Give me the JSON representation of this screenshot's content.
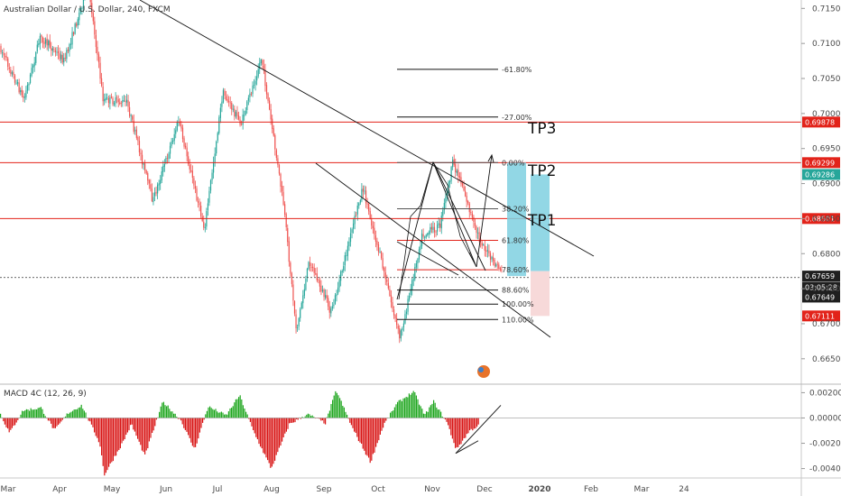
{
  "chart_data": [
    {
      "type": "candlestick",
      "title": "Australian Dollar / U.S. Dollar, 240, FXCM",
      "x_tick_labels": [
        "Mar",
        "Apr",
        "May",
        "Jun",
        "Jul",
        "Aug",
        "Sep",
        "Oct",
        "Nov",
        "Dec",
        "2020",
        "Feb",
        "Mar",
        "24"
      ],
      "y_tick_labels": [
        "0.71500",
        "0.71000",
        "0.70500",
        "0.70000",
        "0.69500",
        "0.69000",
        "0.68500",
        "0.68000",
        "0.67500",
        "0.67000",
        "0.66500"
      ],
      "ylim": [
        0.6615,
        0.7162
      ],
      "price_path": [
        {
          "date": "2019-02-27",
          "price": 0.7095
        },
        {
          "date": "2019-03-12",
          "price": 0.702
        },
        {
          "date": "2019-03-21",
          "price": 0.711
        },
        {
          "date": "2019-04-03",
          "price": 0.7075
        },
        {
          "date": "2019-04-16",
          "price": 0.7185
        },
        {
          "date": "2019-04-24",
          "price": 0.702
        },
        {
          "date": "2019-05-07",
          "price": 0.7015
        },
        {
          "date": "2019-05-21",
          "price": 0.6875
        },
        {
          "date": "2019-06-04",
          "price": 0.699
        },
        {
          "date": "2019-06-18",
          "price": 0.6835
        },
        {
          "date": "2019-06-28",
          "price": 0.703
        },
        {
          "date": "2019-07-08",
          "price": 0.6985
        },
        {
          "date": "2019-07-19",
          "price": 0.708
        },
        {
          "date": "2019-07-31",
          "price": 0.687
        },
        {
          "date": "2019-08-07",
          "price": 0.669
        },
        {
          "date": "2019-08-14",
          "price": 0.679
        },
        {
          "date": "2019-08-26",
          "price": 0.6715
        },
        {
          "date": "2019-09-12",
          "price": 0.6895
        },
        {
          "date": "2019-09-23",
          "price": 0.678
        },
        {
          "date": "2019-10-02",
          "price": 0.668
        },
        {
          "date": "2019-10-07",
          "price": 0.6735
        },
        {
          "date": "2019-10-14",
          "price": 0.6825
        },
        {
          "date": "2019-10-24",
          "price": 0.684
        },
        {
          "date": "2019-10-31",
          "price": 0.693
        },
        {
          "date": "2019-11-05",
          "price": 0.69
        },
        {
          "date": "2019-11-12",
          "price": 0.6835
        },
        {
          "date": "2019-11-21",
          "price": 0.679
        },
        {
          "date": "2019-11-27",
          "price": 0.6775
        }
      ],
      "horizontal_lines": [
        {
          "price": 0.69878,
          "color": "#e2231a"
        },
        {
          "price": 0.69299,
          "color": "#e2231a"
        },
        {
          "price": 0.68501,
          "color": "#e2231a"
        },
        {
          "price": 0.67659,
          "color": "#333333",
          "dashed": true
        }
      ],
      "price_tags": [
        {
          "label": "0.69878",
          "price": 0.69878,
          "color": "#e2231a"
        },
        {
          "label": "0.69299",
          "price": 0.69299,
          "color": "#e2231a"
        },
        {
          "label": "0.69286",
          "price": 0.6913,
          "color": "#26a69a"
        },
        {
          "label": "0.68501",
          "price": 0.68501,
          "color": "#e2231a"
        },
        {
          "label": "0.67659",
          "price": 0.6768,
          "color": "#1f1f1f"
        },
        {
          "label": "03:05:28",
          "price": 0.6752,
          "color": "#1f1f1f"
        },
        {
          "label": "0.67649",
          "price": 0.6738,
          "color": "#1f1f1f"
        },
        {
          "label": "0.67111",
          "price": 0.67111,
          "color": "#e2231a"
        }
      ],
      "fibonacci_levels": [
        {
          "label": "-61.80%",
          "price": 0.7063
        },
        {
          "label": "-27.00%",
          "price": 0.6995
        },
        {
          "label": "0.00%",
          "price": 0.693,
          "color": "#555555"
        },
        {
          "label": "38.20%",
          "price": 0.6864,
          "color": "#555555"
        },
        {
          "label": "61.80%",
          "price": 0.6819,
          "color": "#e2231a"
        },
        {
          "label": "78.60%",
          "price": 0.6777,
          "color": "#e2231a"
        },
        {
          "label": "88.60%",
          "price": 0.6748
        },
        {
          "label": "100.00%",
          "price": 0.6728
        },
        {
          "label": "110.00%",
          "price": 0.6706
        }
      ],
      "annotations": [
        "TP3",
        "TP2",
        "TP1"
      ],
      "colors": {
        "bull": "#26a69a",
        "bear": "#ef5350",
        "target_zone": "#7fd0e0",
        "stop_zone": "#f7d9d9"
      }
    },
    {
      "type": "histogram",
      "title": "MACD 4C (12, 26, 9)",
      "y_tick_labels": [
        "0.00200",
        "0.00000",
        "-0.00200",
        "-0.00400"
      ],
      "ylim": [
        -0.0046,
        0.0026
      ],
      "colors": {
        "positive": "#1fa61f",
        "negative": "#d81414"
      }
    }
  ]
}
